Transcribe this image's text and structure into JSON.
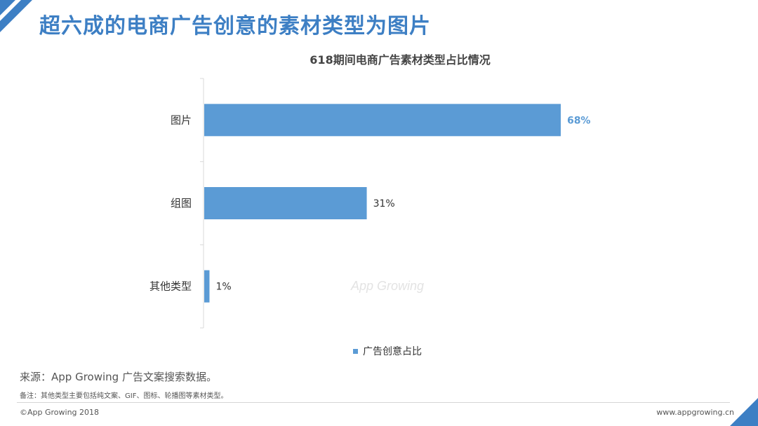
{
  "page_title": "超六成的电商广告创意的素材类型为图片",
  "watermark": "App Growing",
  "colors": {
    "accent": "#3d7fc4",
    "bar": "#5b9bd5",
    "highlight_label": "#5b9bd5"
  },
  "chart_data": {
    "type": "bar",
    "orientation": "horizontal",
    "title": "618期间电商广告素材类型占比情况",
    "categories": [
      "图片",
      "组图",
      "其他类型"
    ],
    "series": [
      {
        "name": "广告创意占比",
        "values": [
          68,
          31,
          1
        ]
      }
    ],
    "data_labels": [
      "68%",
      "31%",
      "1%"
    ],
    "xlim": [
      0,
      100
    ],
    "grid": false,
    "legend": "bottom",
    "xlabel": "",
    "ylabel": ""
  },
  "footer": {
    "source": "来源：App Growing 广告文案搜索数据。",
    "note": "备注：其他类型主要包括纯文案、GIF、图标、轮播图等素材类型。",
    "copyright": "©App Growing 2018",
    "url": "www.appgrowing.cn"
  }
}
